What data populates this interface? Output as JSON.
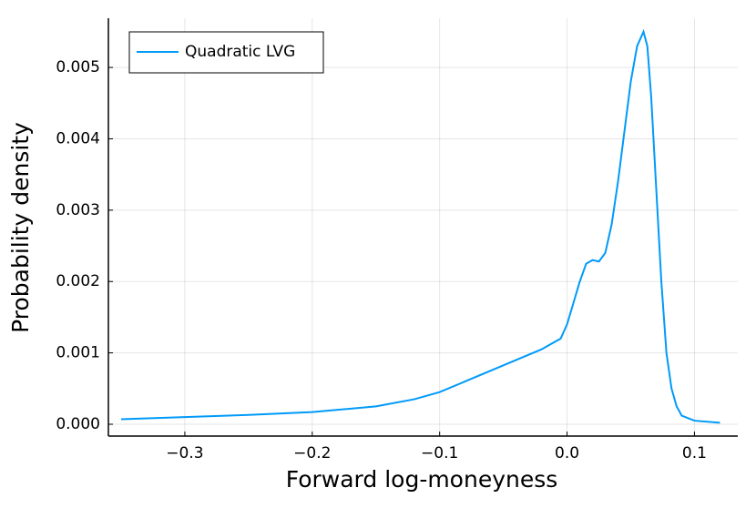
{
  "chart_data": {
    "type": "line",
    "xlabel": "Forward log-moneyness",
    "ylabel": "Probability density",
    "x": [
      -0.35,
      -0.3,
      -0.25,
      -0.2,
      -0.15,
      -0.12,
      -0.1,
      -0.08,
      -0.06,
      -0.04,
      -0.02,
      -0.005,
      0.0,
      0.005,
      0.01,
      0.015,
      0.02,
      0.025,
      0.03,
      0.035,
      0.04,
      0.045,
      0.05,
      0.055,
      0.06,
      0.063,
      0.066,
      0.07,
      0.074,
      0.078,
      0.082,
      0.086,
      0.09,
      0.1,
      0.12
    ],
    "series": [
      {
        "name": "Quadratic LVG",
        "color": "#009af9",
        "values": [
          7e-05,
          0.0001,
          0.00013,
          0.00017,
          0.00025,
          0.00035,
          0.00045,
          0.0006,
          0.00075,
          0.0009,
          0.00105,
          0.0012,
          0.0014,
          0.0017,
          0.002,
          0.00225,
          0.0023,
          0.00228,
          0.0024,
          0.0028,
          0.0034,
          0.0041,
          0.0048,
          0.0053,
          0.0055,
          0.0053,
          0.0046,
          0.0033,
          0.002,
          0.001,
          0.0005,
          0.00025,
          0.00012,
          5e-05,
          2e-05
        ]
      }
    ],
    "xlim": [
      -0.36,
      0.134
    ],
    "ylim": [
      -0.000166,
      0.00569
    ],
    "xticks": [
      {
        "value": -0.3,
        "label": "−0.3"
      },
      {
        "value": -0.2,
        "label": "−0.2"
      },
      {
        "value": -0.1,
        "label": "−0.1"
      },
      {
        "value": 0,
        "label": "0.0"
      },
      0.1
    ],
    "yticks": [
      {
        "value": 0,
        "label": "0.000"
      },
      {
        "value": 0.001,
        "label": "0.001"
      },
      {
        "value": 0.002,
        "label": "0.002"
      },
      {
        "value": 0.003,
        "label": "0.003"
      },
      {
        "value": 0.004,
        "label": "0.004"
      },
      {
        "value": 0.005,
        "label": "0.005"
      }
    ],
    "grid": true,
    "legend": "top-left"
  }
}
